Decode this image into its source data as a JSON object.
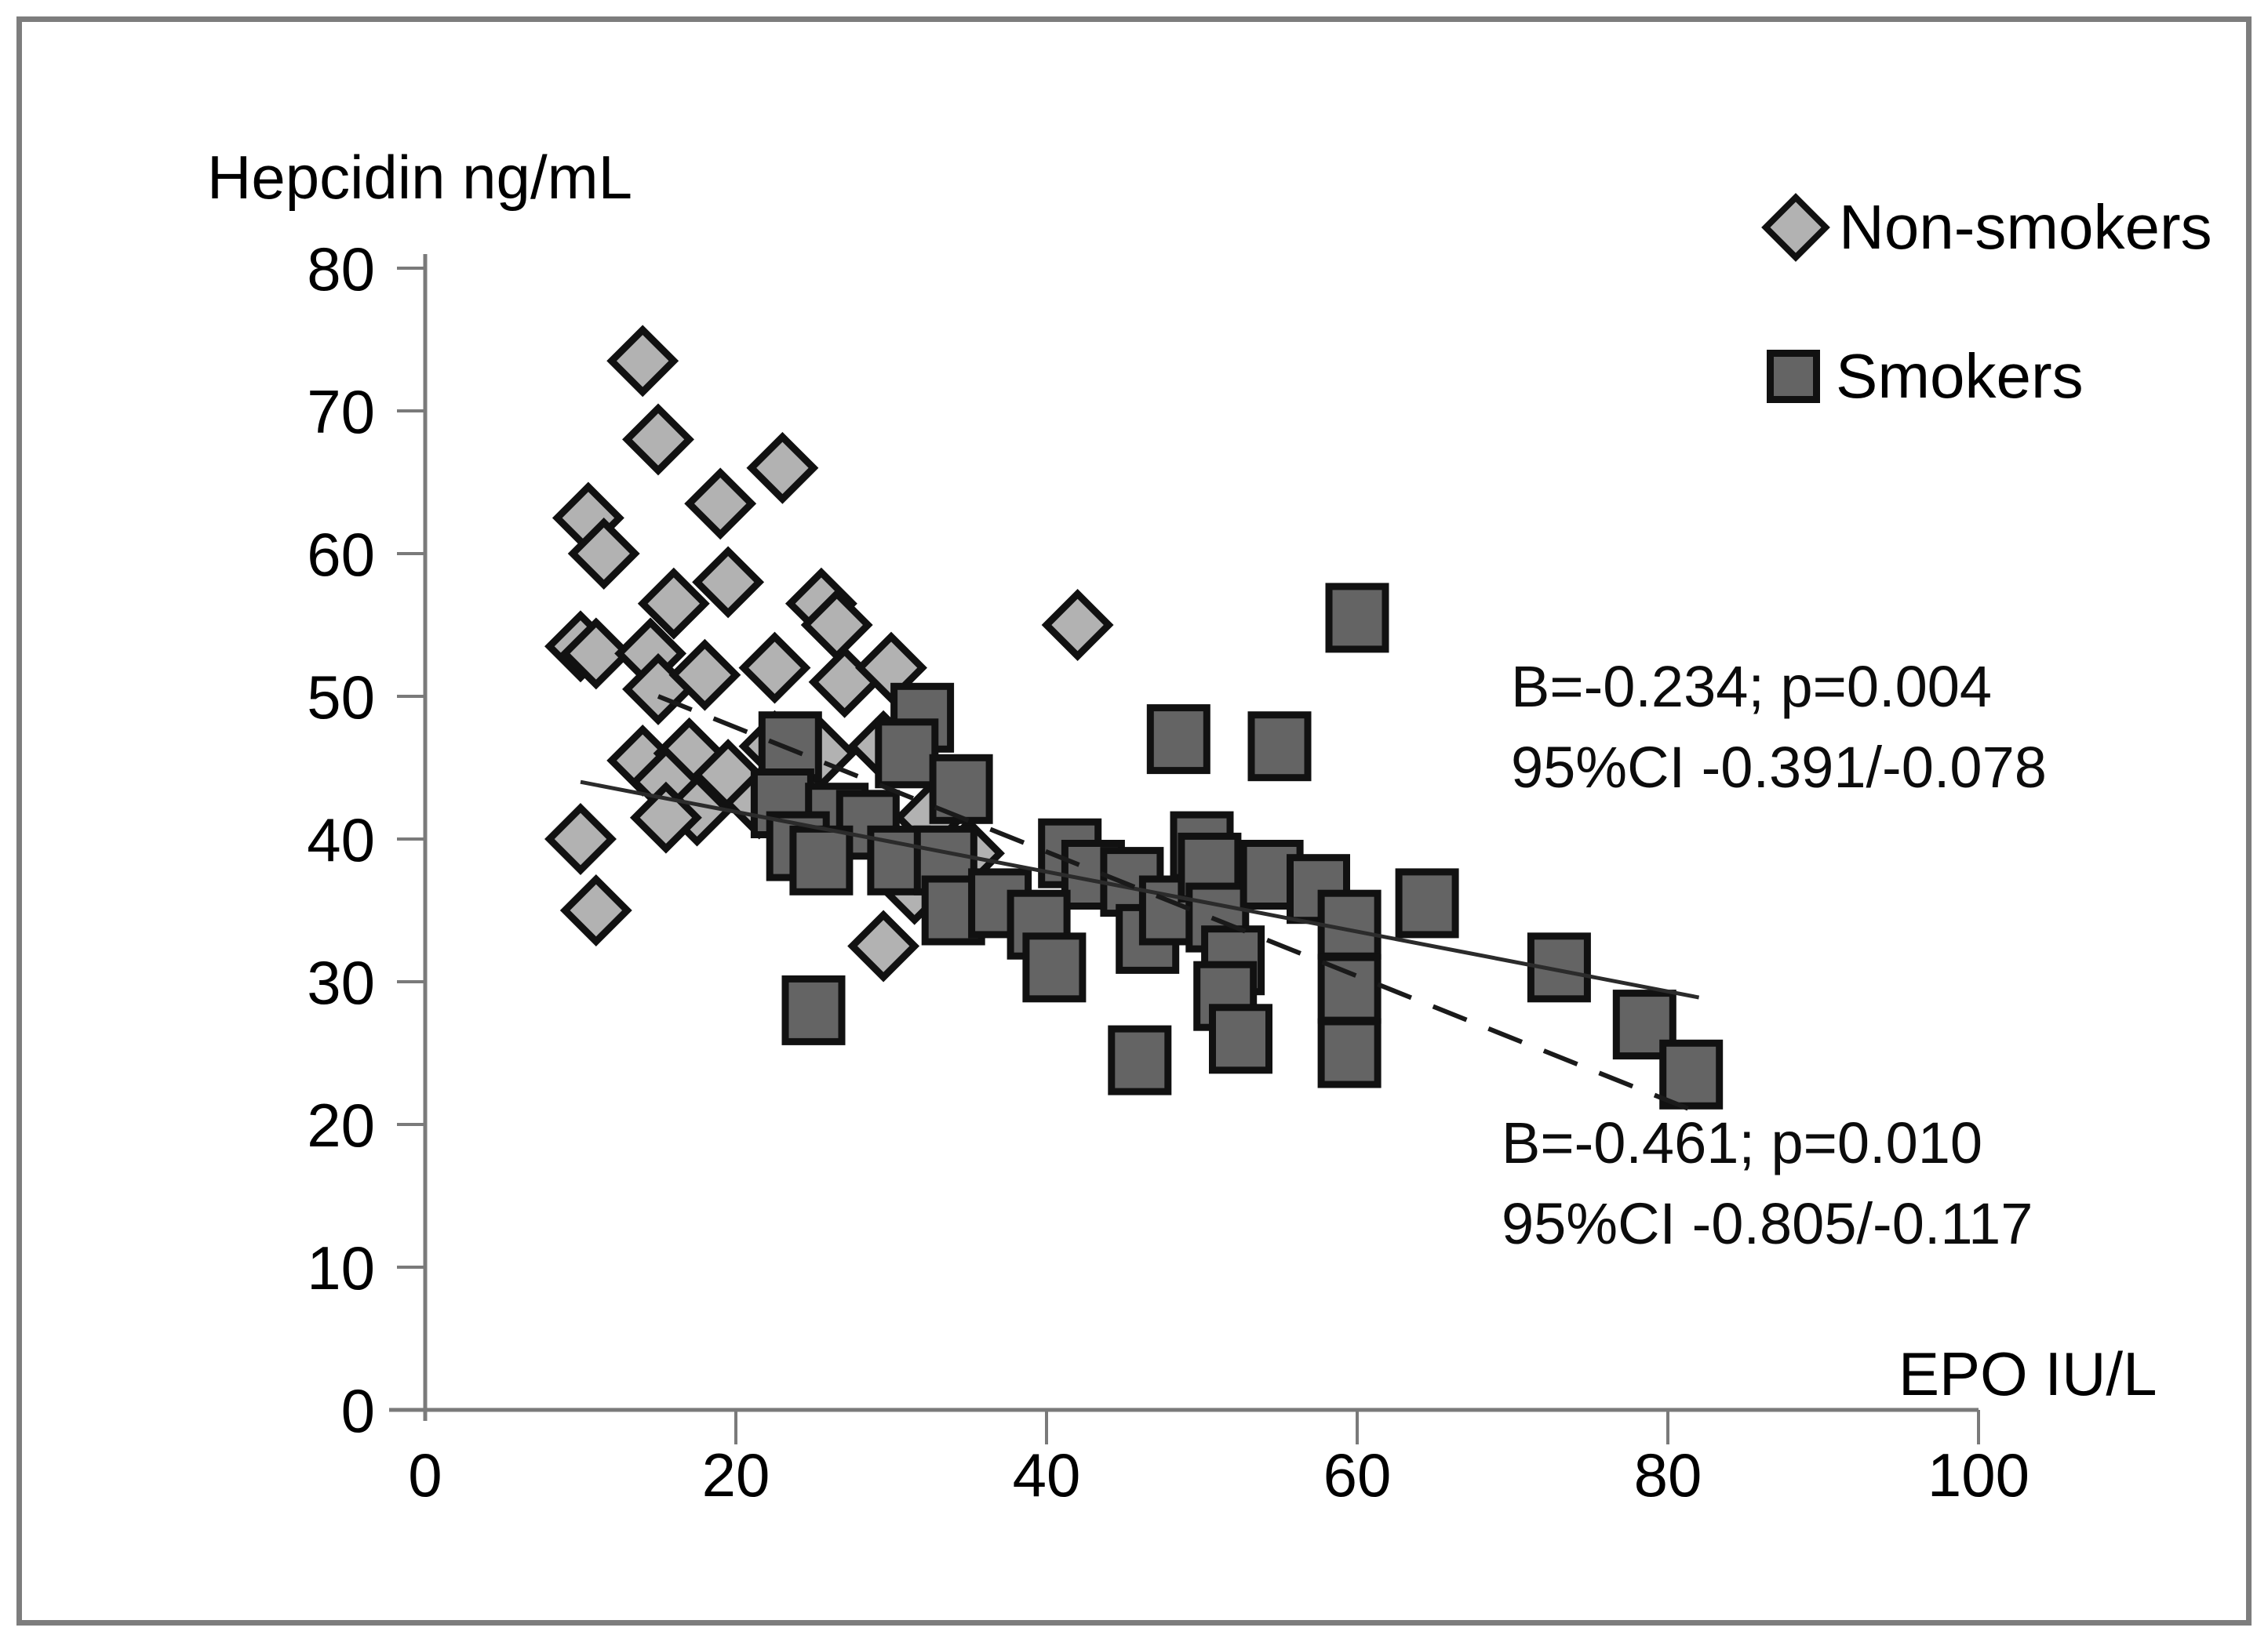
{
  "figure": {
    "border_color": "#7d7d7d",
    "background": "#ffffff",
    "axis_color": "#7a7a7a",
    "text_color": "#000000"
  },
  "legend": {
    "position": "top-right",
    "items": [
      {
        "label": "Non-smokers",
        "marker": "diamond",
        "fill": "#b2b2b2",
        "stroke": "#111111"
      },
      {
        "label": "Smokers",
        "marker": "square",
        "fill": "#646464",
        "stroke": "#111111"
      }
    ]
  },
  "chart_data": {
    "type": "scatter",
    "title": "",
    "xlabel": "EPO IU/L",
    "ylabel": "Hepcidin ng/mL",
    "xlim": [
      0,
      100
    ],
    "ylim": [
      0,
      80
    ],
    "x_ticks": [
      0,
      20,
      40,
      60,
      80,
      100
    ],
    "y_ticks": [
      0,
      10,
      20,
      30,
      40,
      50,
      60,
      70,
      80
    ],
    "grid": false,
    "legend_position": "top-right",
    "series": [
      {
        "name": "Non-smokers",
        "marker": "diamond",
        "fill": "#b2b2b2",
        "stroke": "#111111",
        "points": [
          [
            14,
            73.5
          ],
          [
            15,
            68
          ],
          [
            23,
            66
          ],
          [
            19,
            63.5
          ],
          [
            10.5,
            62.5
          ],
          [
            11.5,
            60
          ],
          [
            19.5,
            58
          ],
          [
            16,
            56.5
          ],
          [
            25.5,
            56.5
          ],
          [
            26.5,
            55
          ],
          [
            42,
            55
          ],
          [
            10,
            53.5
          ],
          [
            11,
            53
          ],
          [
            14.5,
            53
          ],
          [
            15,
            50.5
          ],
          [
            18,
            51.5
          ],
          [
            22.5,
            52
          ],
          [
            27,
            51
          ],
          [
            30,
            52
          ],
          [
            14,
            45.5
          ],
          [
            17,
            46
          ],
          [
            19.5,
            44.5
          ],
          [
            22.5,
            46.5
          ],
          [
            25.5,
            46
          ],
          [
            29.5,
            46.5
          ],
          [
            15.5,
            44
          ],
          [
            17.5,
            42
          ],
          [
            21.5,
            42.5
          ],
          [
            15.5,
            41.5
          ],
          [
            32.5,
            41.5
          ],
          [
            35,
            39
          ],
          [
            10,
            40
          ],
          [
            11,
            35
          ],
          [
            29.5,
            32.5
          ],
          [
            31.5,
            36.5
          ]
        ]
      },
      {
        "name": "Smokers",
        "marker": "square",
        "fill": "#646464",
        "stroke": "#111111",
        "points": [
          [
            60,
            55.5
          ],
          [
            48.5,
            47
          ],
          [
            55,
            46.5
          ],
          [
            32,
            48.5
          ],
          [
            23.5,
            46.5
          ],
          [
            31,
            46
          ],
          [
            34.5,
            43.5
          ],
          [
            23,
            42.5
          ],
          [
            26.5,
            41.5
          ],
          [
            28.5,
            41
          ],
          [
            24,
            39.5
          ],
          [
            25.5,
            38.5
          ],
          [
            30.5,
            38.5
          ],
          [
            33.5,
            38.5
          ],
          [
            34,
            35
          ],
          [
            37,
            35.5
          ],
          [
            41.5,
            39
          ],
          [
            43,
            37.5
          ],
          [
            45.5,
            37
          ],
          [
            39.5,
            34
          ],
          [
            40.5,
            31
          ],
          [
            46.5,
            33
          ],
          [
            48,
            35
          ],
          [
            50,
            39.5
          ],
          [
            50.5,
            38
          ],
          [
            51,
            34.5
          ],
          [
            54.5,
            37.5
          ],
          [
            57.5,
            36.5
          ],
          [
            52,
            31.5
          ],
          [
            51.5,
            29
          ],
          [
            52.5,
            26
          ],
          [
            46,
            24.5
          ],
          [
            59.5,
            34
          ],
          [
            59.5,
            29.5
          ],
          [
            59.5,
            25
          ],
          [
            64.5,
            35.5
          ],
          [
            73,
            31
          ],
          [
            78.5,
            27
          ],
          [
            81.5,
            23.5
          ],
          [
            25,
            28
          ]
        ]
      }
    ],
    "trend_lines": [
      {
        "name": "Non-smokers trend",
        "style": "solid",
        "color": "#2b2b2b",
        "width": 5,
        "from": [
          10,
          44
        ],
        "to": [
          82,
          28.9
        ]
      },
      {
        "name": "Smokers trend",
        "style": "dashed",
        "color": "#1a1a1a",
        "width": 6,
        "dash": "46 30",
        "from": [
          15,
          50
        ],
        "to": [
          81.8,
          20.9
        ]
      }
    ],
    "annotations": [
      {
        "series": "Non-smokers",
        "line1": "B=-0.234; p=0.004",
        "line2": "95%CI -0.391/-0.078"
      },
      {
        "series": "Smokers",
        "line1": "B=-0.461; p=0.010",
        "line2": "95%CI -0.805/-0.117"
      }
    ]
  }
}
